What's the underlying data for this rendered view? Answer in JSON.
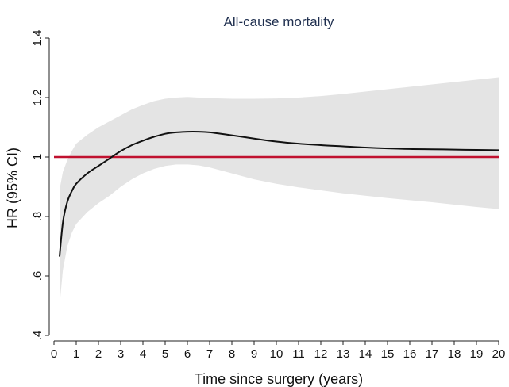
{
  "chart_data": {
    "type": "line",
    "title": "All-cause mortality",
    "xlabel": "Time since surgery (years)",
    "ylabel": "HR (95% CI)",
    "xlim": [
      0,
      20
    ],
    "ylim": [
      0.4,
      1.4
    ],
    "x_ticks": [
      0,
      1,
      2,
      3,
      4,
      5,
      6,
      7,
      8,
      9,
      10,
      11,
      12,
      13,
      14,
      15,
      16,
      17,
      18,
      19,
      20
    ],
    "x_tick_labels": [
      "0",
      "1",
      "2",
      "3",
      "4",
      "5",
      "6",
      "7",
      "8",
      "9",
      "10",
      "11",
      "12",
      "13",
      "14",
      "15",
      "16",
      "17",
      "18",
      "19",
      "20"
    ],
    "y_ticks": [
      0.4,
      0.6,
      0.8,
      1.0,
      1.2,
      1.4
    ],
    "y_tick_labels": [
      ".4",
      ".6",
      ".8",
      "1",
      "1.2",
      "1.4"
    ],
    "y_tick_rotation": "vertical",
    "grid": false,
    "reference_line": {
      "y": 1.0,
      "color": "#c0112f"
    },
    "colors": {
      "hr_line": "#111111",
      "ci_band": "#e4e4e4",
      "reference": "#c0112f"
    },
    "series": [
      {
        "type": "line",
        "x": [
          0.25,
          0.4,
          0.6,
          0.8,
          1.0,
          1.5,
          2.0,
          2.5,
          3.0,
          3.5,
          4.0,
          4.5,
          5.0,
          5.5,
          6.0,
          6.5,
          7.0,
          8.0,
          9.0,
          10.0,
          11.0,
          12.0,
          13.0,
          14.0,
          15.0,
          16.0,
          17.0,
          18.0,
          19.0,
          20.0
        ],
        "y": [
          0.665,
          0.78,
          0.85,
          0.885,
          0.91,
          0.945,
          0.97,
          0.995,
          1.02,
          1.04,
          1.055,
          1.068,
          1.078,
          1.083,
          1.085,
          1.085,
          1.083,
          1.073,
          1.062,
          1.052,
          1.045,
          1.04,
          1.036,
          1.032,
          1.029,
          1.027,
          1.026,
          1.025,
          1.024,
          1.023
        ]
      },
      {
        "type": "band",
        "x": [
          0.25,
          0.4,
          0.6,
          0.8,
          1.0,
          1.5,
          2.0,
          2.5,
          3.0,
          3.5,
          4.0,
          4.5,
          5.0,
          5.5,
          6.0,
          6.5,
          7.0,
          8.0,
          9.0,
          10.0,
          11.0,
          12.0,
          13.0,
          14.0,
          15.0,
          16.0,
          17.0,
          18.0,
          19.0,
          20.0
        ],
        "lower": [
          0.5,
          0.62,
          0.7,
          0.745,
          0.775,
          0.815,
          0.845,
          0.87,
          0.9,
          0.925,
          0.945,
          0.96,
          0.97,
          0.975,
          0.975,
          0.972,
          0.965,
          0.945,
          0.925,
          0.91,
          0.898,
          0.888,
          0.878,
          0.87,
          0.862,
          0.855,
          0.848,
          0.84,
          0.832,
          0.825
        ],
        "upper": [
          0.89,
          0.95,
          0.99,
          1.02,
          1.045,
          1.075,
          1.1,
          1.12,
          1.14,
          1.16,
          1.175,
          1.188,
          1.196,
          1.2,
          1.202,
          1.2,
          1.198,
          1.196,
          1.196,
          1.197,
          1.2,
          1.205,
          1.212,
          1.22,
          1.228,
          1.236,
          1.244,
          1.252,
          1.26,
          1.268
        ]
      }
    ]
  }
}
